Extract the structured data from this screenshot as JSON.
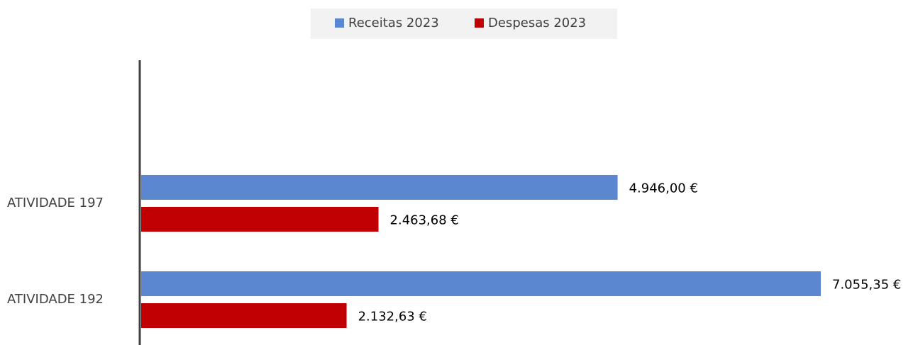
{
  "chart_data": {
    "type": "barh",
    "categories": [
      "ATIVIDADE 197",
      "ATIVIDADE 192"
    ],
    "series": [
      {
        "name": "Receitas 2023",
        "color": "#5b87d0",
        "values": [
          4946.0,
          7055.35
        ],
        "value_labels": [
          "4.946,00 €",
          "7.055,35 €"
        ]
      },
      {
        "name": "Despesas 2023",
        "color": "#c00000",
        "values": [
          2463.68,
          2132.63
        ],
        "value_labels": [
          "2.463,68 €",
          "2.132,63 €"
        ]
      }
    ],
    "legend": "top"
  }
}
